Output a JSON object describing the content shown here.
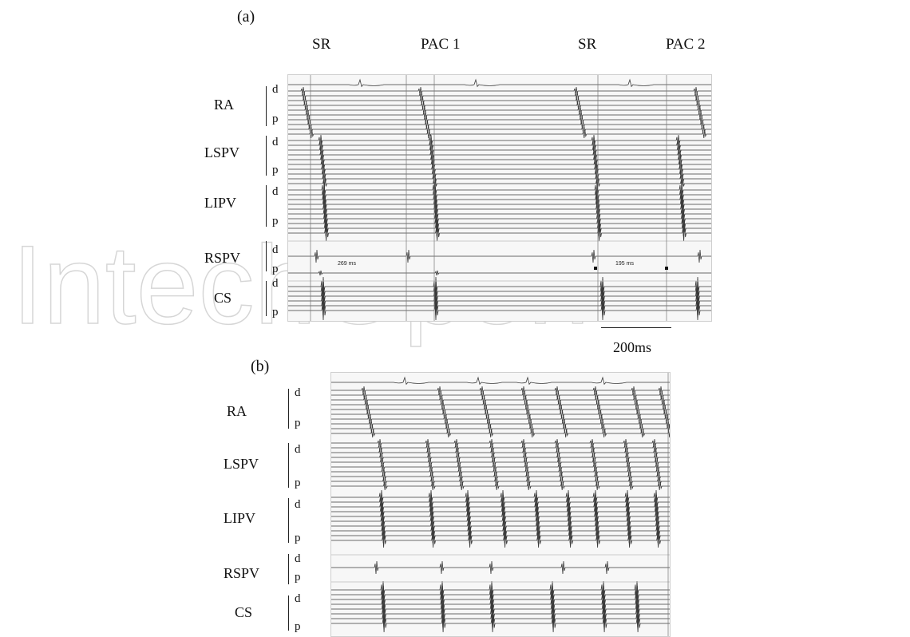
{
  "watermark": "IntechOpen",
  "panel_a": {
    "label": "(a)",
    "events": [
      "SR",
      "PAC 1",
      "SR",
      "PAC 2"
    ],
    "channels": [
      {
        "name": "RA",
        "d": "d",
        "p": "p"
      },
      {
        "name": "LSPV",
        "d": "d",
        "p": "p"
      },
      {
        "name": "LIPV",
        "d": "d",
        "p": "p"
      },
      {
        "name": "RSPV",
        "d": "d",
        "p": "p"
      },
      {
        "name": "CS",
        "d": "d",
        "p": "p"
      }
    ],
    "measurements": [
      "269 ms",
      "195 ms"
    ],
    "scale_bar": "200ms"
  },
  "panel_b": {
    "label": "(b)",
    "channels": [
      {
        "name": "RA",
        "d": "d",
        "p": "p"
      },
      {
        "name": "LSPV",
        "d": "d",
        "p": "p"
      },
      {
        "name": "LIPV",
        "d": "d",
        "p": "p"
      },
      {
        "name": "RSPV",
        "d": "d",
        "p": "p"
      },
      {
        "name": "CS",
        "d": "d",
        "p": "p"
      }
    ]
  }
}
